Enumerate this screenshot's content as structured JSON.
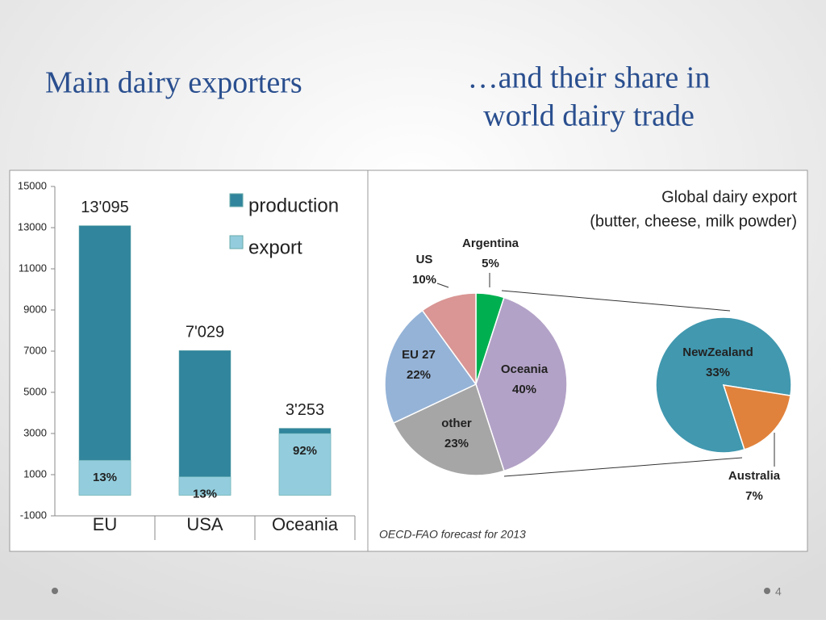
{
  "slide": {
    "title": "Main dairy exporters",
    "heading_lines": [
      "…and their share in",
      "world dairy trade"
    ],
    "page_number": "4"
  },
  "chart_data": [
    {
      "type": "bar",
      "stacked": false,
      "categories": [
        "EU",
        "USA",
        "Oceania"
      ],
      "series": [
        {
          "name": "production",
          "color": "#31859c",
          "values": [
            13095,
            7029,
            3253
          ],
          "value_labels": [
            "13'095",
            "7'029",
            "3'253"
          ]
        },
        {
          "name": "export",
          "color": "#93cddd",
          "values": [
            1700,
            900,
            3000
          ],
          "value_labels": [
            "13%",
            "13%",
            "92%"
          ]
        }
      ],
      "ylim": [
        -1000,
        15000
      ],
      "yticks": [
        -1000,
        1000,
        3000,
        5000,
        7000,
        9000,
        11000,
        13000,
        15000
      ],
      "grid": false,
      "legend": "top-right"
    },
    {
      "type": "pie",
      "title": "Global dairy export",
      "subtitle": "(butter, cheese, milk powder)",
      "categories": [
        "Argentina",
        "Oceania",
        "other",
        "EU 27",
        "US"
      ],
      "values": [
        5,
        40,
        23,
        22,
        10
      ],
      "value_labels": [
        "5%",
        "40%",
        "23%",
        "22%",
        "10%"
      ],
      "colors": [
        "#00b050",
        "#b3a2c7",
        "#a6a6a6",
        "#95b3d7",
        "#d99694"
      ],
      "breakdown": {
        "categories": [
          "NewZealand",
          "Australia"
        ],
        "values": [
          33,
          7
        ],
        "value_labels": [
          "33%",
          "7%"
        ],
        "colors": [
          "#4198af",
          "#e0823c"
        ]
      },
      "source": "OECD-FAO forecast for 2013"
    }
  ]
}
